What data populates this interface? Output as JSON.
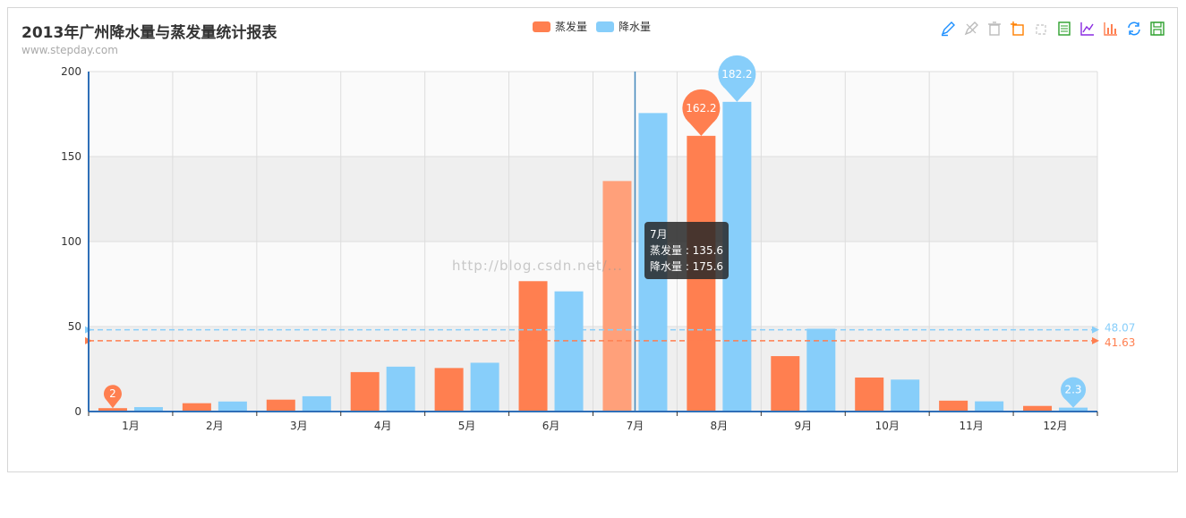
{
  "header": {
    "title": "2013年广州降水量与蒸发量统计报表",
    "subtitle": "www.stepday.com"
  },
  "toolbox": {
    "icons": [
      "mark-icon",
      "mark-undo-icon",
      "mark-clear-icon",
      "data-zoom-icon",
      "data-zoom-reset-icon",
      "data-view-icon",
      "line-chart-icon",
      "bar-chart-icon",
      "restore-icon",
      "save-image-icon"
    ]
  },
  "tooltip": {
    "title": "7月",
    "line1": "蒸发量 : 135.6",
    "line2": "降水量 : 175.6"
  },
  "watermark": "http://blog.csdn.net/...",
  "colors": {
    "evaporation": "#ff7f50",
    "evaporation_hover": "#ffa07a",
    "precipitation": "#87cefa",
    "axis": "#2f6fb8"
  },
  "chart_data": {
    "type": "bar",
    "title": "2013年广州降水量与蒸发量统计报表",
    "subtitle": "www.stepday.com",
    "categories": [
      "1月",
      "2月",
      "3月",
      "4月",
      "5月",
      "6月",
      "7月",
      "8月",
      "9月",
      "10月",
      "11月",
      "12月"
    ],
    "series": [
      {
        "name": "蒸发量",
        "values": [
          2.0,
          4.9,
          7.0,
          23.2,
          25.6,
          76.7,
          135.6,
          162.2,
          32.6,
          20.0,
          6.4,
          3.3
        ],
        "markPoints": [
          {
            "label": "162.2",
            "index": 7
          },
          {
            "label": "2",
            "index": 0
          }
        ],
        "markLine": {
          "label": "41.63",
          "value": 41.63
        }
      },
      {
        "name": "降水量",
        "values": [
          2.6,
          5.9,
          9.0,
          26.4,
          28.7,
          70.7,
          175.6,
          182.2,
          48.7,
          18.8,
          6.0,
          2.3
        ],
        "markPoints": [
          {
            "label": "182.2",
            "index": 7
          },
          {
            "label": "2.3",
            "index": 11
          }
        ],
        "markLine": {
          "label": "48.07",
          "value": 48.07
        }
      }
    ],
    "ylim": [
      0,
      200
    ],
    "yticks": [
      0,
      50,
      100,
      150,
      200
    ],
    "legend": "top-center",
    "grid": true,
    "highlighted_category": "7月"
  }
}
